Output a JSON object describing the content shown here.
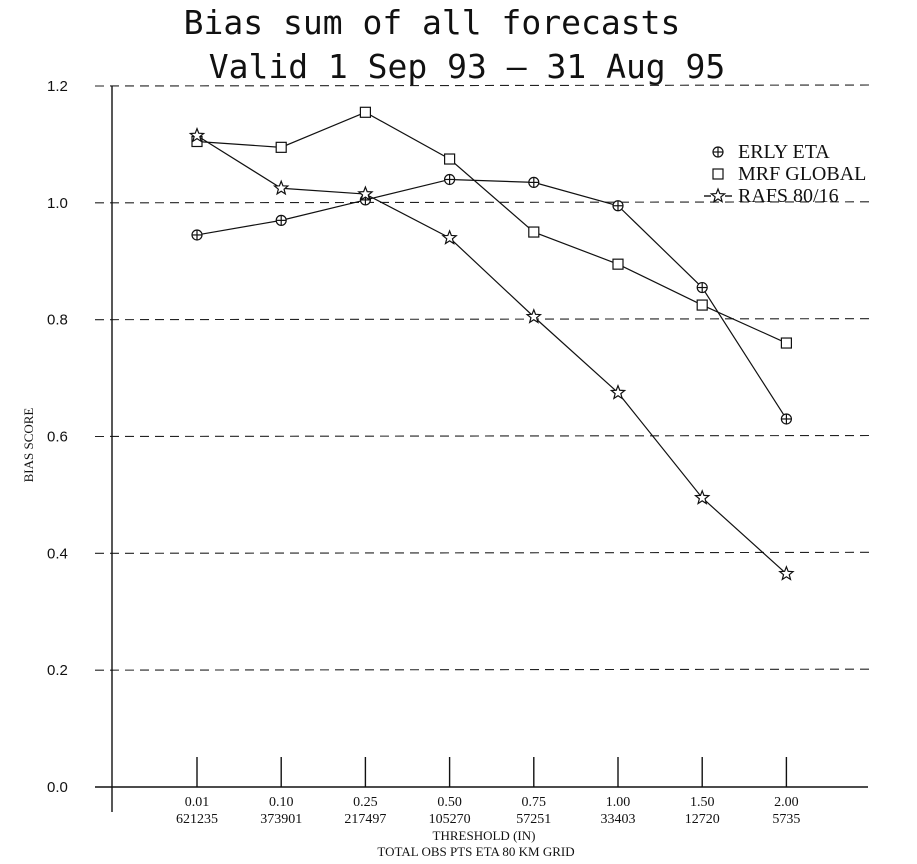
{
  "chart_data": {
    "type": "line",
    "title": "Bias sum of all forecasts",
    "subtitle": "Valid  1 Sep 93 – 31 Aug 95",
    "ylabel": "BIAS SCORE",
    "xlabel": "THRESHOLD (IN)",
    "xlabel2": "TOTAL OBS PTS ETA 80 KM GRID",
    "ylim": [
      0,
      1.2
    ],
    "yticks": [
      "0.0",
      "0.2",
      "0.4",
      "0.6",
      "0.8",
      "1.0",
      "1.2"
    ],
    "grid": true,
    "legend_position": "top-right",
    "categories": [
      "0.01",
      "0.10",
      "0.25",
      "0.50",
      "0.75",
      "1.00",
      "1.50",
      "2.00"
    ],
    "obs_points": [
      "621235",
      "373901",
      "217497",
      "105270",
      "57251",
      "33403",
      "12720",
      "5735"
    ],
    "series": [
      {
        "name": "ERLY ETA",
        "marker": "circle-plus",
        "values": [
          0.945,
          0.97,
          1.005,
          1.04,
          1.035,
          0.995,
          0.855,
          0.63
        ]
      },
      {
        "name": "MRF GLOBAL",
        "marker": "square",
        "values": [
          1.105,
          1.095,
          1.155,
          1.075,
          0.95,
          0.895,
          0.825,
          0.76
        ]
      },
      {
        "name": "RAFS 80/16",
        "marker": "star",
        "values": [
          1.115,
          1.025,
          1.015,
          0.94,
          0.805,
          0.675,
          0.495,
          0.365
        ]
      }
    ]
  }
}
